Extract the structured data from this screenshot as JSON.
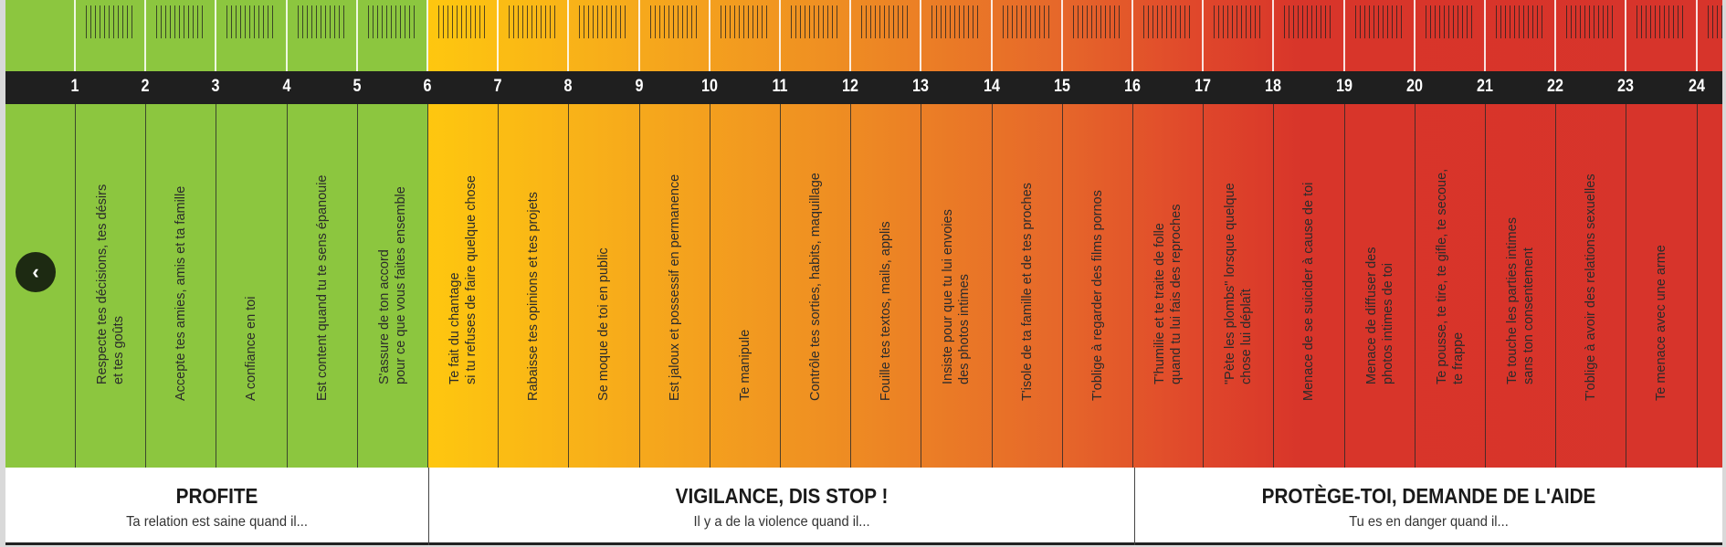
{
  "scale_numbers": [
    "1",
    "2",
    "3",
    "4",
    "5",
    "6",
    "7",
    "8",
    "9",
    "10",
    "11",
    "12",
    "13",
    "14",
    "15",
    "16",
    "17",
    "18",
    "19",
    "20",
    "21",
    "22",
    "23",
    "24"
  ],
  "items": [
    "Respecte tes décisions, tes désirs\net tes goûts",
    "Accepte tes amies, amis et ta famille",
    "A confiance en toi",
    "Est content quand tu te sens épanouie",
    "S'assure de ton accord\npour ce que vous faites ensemble",
    "Te fait du chantage\nsi tu refuses de faire quelque chose",
    "Rabaisse tes opinions et tes projets",
    "Se moque de toi en public",
    "Est jaloux et possessif en permanence",
    "Te manipule",
    "Contrôle tes sorties, habits, maquillage",
    "Fouille tes textos, mails, applis",
    "Insiste pour que tu lui envoies\ndes photos intimes",
    "T'isole de ta famille et de tes proches",
    "T'oblige à regarder des films pornos",
    "T'humilie et te traite de folle\nquand tu lui fais des reproches",
    "\"Pète les plombs\" lorsque quelque\nchose lui déplaît",
    "Menace de se suicider à cause de toi",
    "Menace de diffuser des\nphotos intimes de toi",
    "Te pousse, te tire, te gifle, te secoue,\nte frappe",
    "Te touche les parties intimes\nsans ton consentement",
    "T'oblige à avoir des relations sexuelles",
    "Te menace avec une arme"
  ],
  "back_button": {
    "icon": "chevron-left-icon",
    "glyph": "‹"
  },
  "sections": [
    {
      "title": "PROFITE",
      "subtitle": "Ta relation est saine quand il..."
    },
    {
      "title": "VIGILANCE, DIS STOP !",
      "subtitle": "Il y a de la violence quand il..."
    },
    {
      "title": "PROTÈGE-TOI, DEMANDE DE L'AIDE",
      "subtitle": "Tu es en danger quand il..."
    }
  ],
  "colors": {
    "green": "#8cc63f",
    "yellow": "#fec70f",
    "orange": "#ef8f22",
    "red": "#d8352a",
    "bar": "#1f1f1f"
  }
}
